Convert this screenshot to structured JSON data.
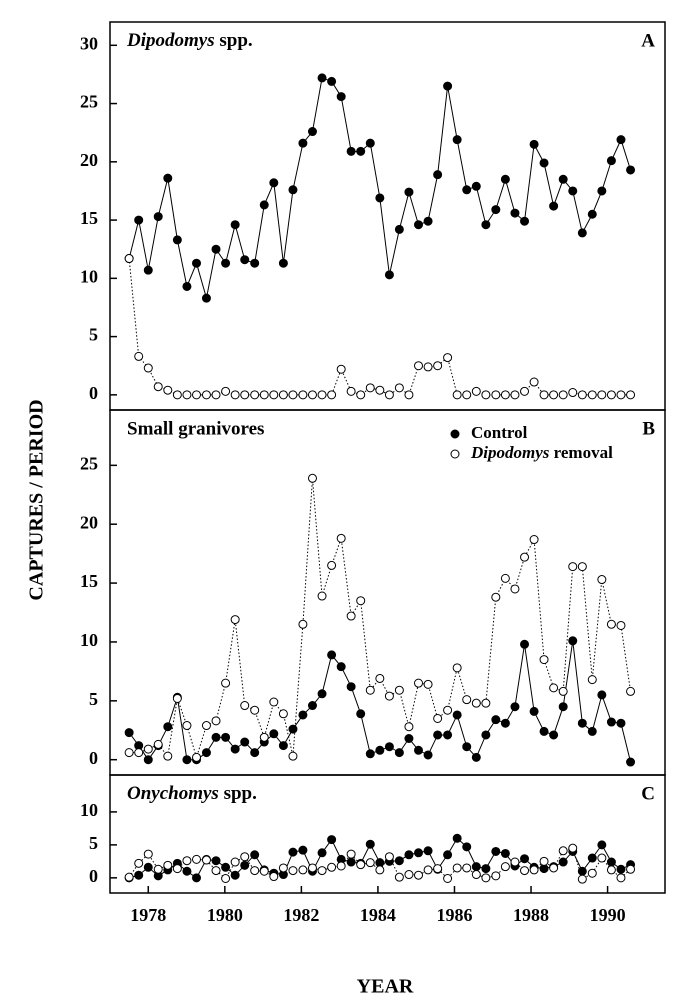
{
  "ylabel": "CAPTURES / PERIOD",
  "xlabel": "YEAR",
  "chart_data": [
    {
      "type": "line",
      "title": "Dipodomys spp.",
      "label": "A",
      "x": [
        1977.5,
        1977.75,
        1978.0,
        1978.26,
        1978.51,
        1978.76,
        1979.01,
        1979.26,
        1979.52,
        1979.77,
        1980.02,
        1980.27,
        1980.52,
        1980.78,
        1981.03,
        1981.28,
        1981.53,
        1981.78,
        1982.04,
        1982.29,
        1982.54,
        1982.79,
        1983.04,
        1983.3,
        1983.55,
        1983.8,
        1984.05,
        1984.3,
        1984.56,
        1984.81,
        1985.06,
        1985.31,
        1985.56,
        1985.82,
        1986.07,
        1986.32,
        1986.57,
        1986.82,
        1987.08,
        1987.33,
        1987.58,
        1987.83,
        1988.08,
        1988.34,
        1988.59,
        1988.84,
        1989.09,
        1989.34,
        1989.6,
        1989.85,
        1990.1,
        1990.35,
        1990.6
      ],
      "series": [
        {
          "name": "Control",
          "color": "#000000",
          "marker": "filled",
          "linestyle": "solid",
          "values": [
            11.7,
            15,
            10.7,
            15.3,
            18.6,
            13.3,
            9.3,
            11.3,
            8.3,
            12.5,
            11.3,
            14.6,
            11.6,
            11.3,
            16.3,
            18.2,
            11.3,
            17.6,
            21.6,
            22.6,
            27.2,
            26.9,
            25.6,
            20.9,
            20.9,
            21.6,
            16.9,
            10.3,
            14.2,
            17.4,
            14.6,
            14.9,
            18.9,
            26.5,
            21.9,
            17.6,
            17.9,
            14.6,
            15.9,
            18.5,
            15.6,
            14.9,
            21.5,
            19.9,
            16.2,
            18.5,
            17.5,
            13.9,
            15.5,
            17.5,
            20.1,
            21.9,
            19.3
          ]
        },
        {
          "name": "Dipodomys removal",
          "color": "#000000",
          "marker": "open",
          "linestyle": "dotted",
          "values": [
            11.7,
            3.3,
            2.3,
            0.7,
            0.4,
            0,
            0,
            0,
            0,
            0,
            0.3,
            0,
            0,
            0,
            0,
            0,
            0,
            0,
            0,
            0,
            0,
            0,
            2.2,
            0.3,
            0,
            0.6,
            0.4,
            0,
            0.6,
            0,
            2.5,
            2.4,
            2.5,
            3.2,
            0,
            0,
            0.3,
            0,
            0,
            0,
            0,
            0.3,
            1.1,
            0,
            0,
            0,
            0.2,
            0,
            0,
            0,
            0,
            0,
            0
          ]
        }
      ],
      "xlim": [
        1977,
        1991.5
      ],
      "ylim": [
        -1.3,
        32
      ],
      "yticks": [
        0,
        5,
        10,
        15,
        20,
        25,
        30
      ]
    },
    {
      "type": "line",
      "title": "Small granivores",
      "label": "B",
      "legend": "upper right",
      "x": [
        1977.5,
        1977.75,
        1978.0,
        1978.26,
        1978.51,
        1978.76,
        1979.01,
        1979.26,
        1979.52,
        1979.77,
        1980.02,
        1980.27,
        1980.52,
        1980.78,
        1981.03,
        1981.28,
        1981.53,
        1981.78,
        1982.04,
        1982.29,
        1982.54,
        1982.79,
        1983.04,
        1983.3,
        1983.55,
        1983.8,
        1984.05,
        1984.3,
        1984.56,
        1984.81,
        1985.06,
        1985.31,
        1985.56,
        1985.82,
        1986.07,
        1986.32,
        1986.57,
        1986.82,
        1987.08,
        1987.33,
        1987.58,
        1987.83,
        1988.08,
        1988.34,
        1988.59,
        1988.84,
        1989.09,
        1989.34,
        1989.6,
        1989.85,
        1990.1,
        1990.35,
        1990.6
      ],
      "series": [
        {
          "name": "Control",
          "color": "#000000",
          "marker": "filled",
          "linestyle": "solid",
          "values": [
            2.3,
            1.2,
            0,
            1.2,
            2.8,
            5.3,
            0,
            0,
            0.6,
            1.9,
            1.9,
            0.9,
            1.5,
            0.6,
            1.5,
            2.2,
            1.2,
            2.6,
            3.8,
            4.6,
            5.6,
            8.9,
            7.9,
            6.2,
            3.9,
            0.5,
            0.8,
            1.1,
            0.6,
            1.8,
            0.8,
            0.4,
            2.1,
            2.1,
            3.8,
            1.1,
            0.2,
            2.1,
            3.4,
            3.1,
            4.5,
            9.8,
            4.1,
            2.4,
            2.1,
            4.5,
            10.1,
            3.1,
            2.4,
            5.5,
            3.2,
            3.1,
            -0.2
          ]
        },
        {
          "name": "Dipodomys removal",
          "color": "#000000",
          "marker": "open",
          "linestyle": "dotted",
          "values": [
            0.6,
            0.6,
            0.9,
            1.3,
            0.3,
            5.2,
            2.9,
            0.2,
            2.9,
            3.3,
            6.5,
            11.9,
            4.6,
            4.2,
            1.9,
            4.9,
            3.9,
            0.3,
            11.5,
            23.9,
            13.9,
            16.5,
            18.8,
            12.2,
            13.5,
            5.9,
            6.9,
            5.4,
            5.9,
            2.8,
            6.5,
            6.4,
            3.5,
            4.2,
            7.8,
            5.1,
            4.8,
            4.8,
            13.8,
            15.4,
            14.5,
            17.2,
            18.7,
            8.5,
            6.1,
            5.8,
            16.4,
            16.4,
            6.8,
            15.3,
            11.5,
            11.4,
            5.8
          ]
        }
      ],
      "xlim": [
        1977,
        1991.5
      ],
      "ylim": [
        -1.3,
        29.7
      ],
      "yticks": [
        0,
        5,
        10,
        15,
        20,
        25
      ]
    },
    {
      "type": "line",
      "title": "Onychomys spp.",
      "label": "C",
      "x": [
        1977.5,
        1977.75,
        1978.0,
        1978.26,
        1978.51,
        1978.76,
        1979.01,
        1979.26,
        1979.52,
        1979.77,
        1980.02,
        1980.27,
        1980.52,
        1980.78,
        1981.03,
        1981.28,
        1981.53,
        1981.78,
        1982.04,
        1982.29,
        1982.54,
        1982.79,
        1983.04,
        1983.3,
        1983.55,
        1983.8,
        1984.05,
        1984.3,
        1984.56,
        1984.81,
        1985.06,
        1985.31,
        1985.56,
        1985.82,
        1986.07,
        1986.32,
        1986.57,
        1986.82,
        1987.08,
        1987.33,
        1987.58,
        1987.83,
        1988.08,
        1988.34,
        1988.59,
        1988.84,
        1989.09,
        1989.34,
        1989.6,
        1989.85,
        1990.1,
        1990.35,
        1990.6
      ],
      "series": [
        {
          "name": "Control",
          "color": "#000000",
          "marker": "filled",
          "linestyle": "solid",
          "values": [
            0,
            0.4,
            1.6,
            0.3,
            1.2,
            2.2,
            1,
            0,
            2.8,
            2.6,
            1.6,
            0.4,
            1.9,
            3.5,
            1.2,
            0.7,
            0.5,
            3.9,
            4.2,
            1,
            3.8,
            5.8,
            2.8,
            2.4,
            2.2,
            5.1,
            2.3,
            2.5,
            2.6,
            3.5,
            3.8,
            4.1,
            1.3,
            3.5,
            6,
            4.7,
            1.7,
            1.4,
            4,
            3.7,
            1.8,
            2.9,
            1.6,
            1.4,
            1.7,
            2.4,
            4,
            1,
            3,
            5,
            2.4,
            1.3,
            2
          ]
        },
        {
          "name": "Dipodomys removal",
          "color": "#000000",
          "marker": "open",
          "linestyle": "dotted",
          "values": [
            0.1,
            2.2,
            3.6,
            1.3,
            1.9,
            1.4,
            2.6,
            2.8,
            2.7,
            1.1,
            -0.1,
            2.4,
            3.2,
            1.1,
            1,
            0.2,
            1.5,
            1.1,
            1.2,
            1.5,
            1.1,
            1.6,
            1.8,
            3.6,
            2,
            2.3,
            1.2,
            3.2,
            0.1,
            0.5,
            0.4,
            1.2,
            1.4,
            -0.1,
            1.5,
            1.5,
            0.5,
            0,
            0.3,
            1.7,
            2.4,
            1.1,
            1.2,
            2.5,
            1.5,
            4.1,
            4.5,
            -0.2,
            0.7,
            3,
            1.2,
            0,
            1.3
          ]
        }
      ],
      "xlim": [
        1977,
        1991.5
      ],
      "ylim": [
        -2.3,
        15.6
      ],
      "yticks": [
        0,
        5,
        10
      ],
      "xticks": [
        1978,
        1980,
        1982,
        1984,
        1986,
        1988,
        1990
      ]
    }
  ]
}
